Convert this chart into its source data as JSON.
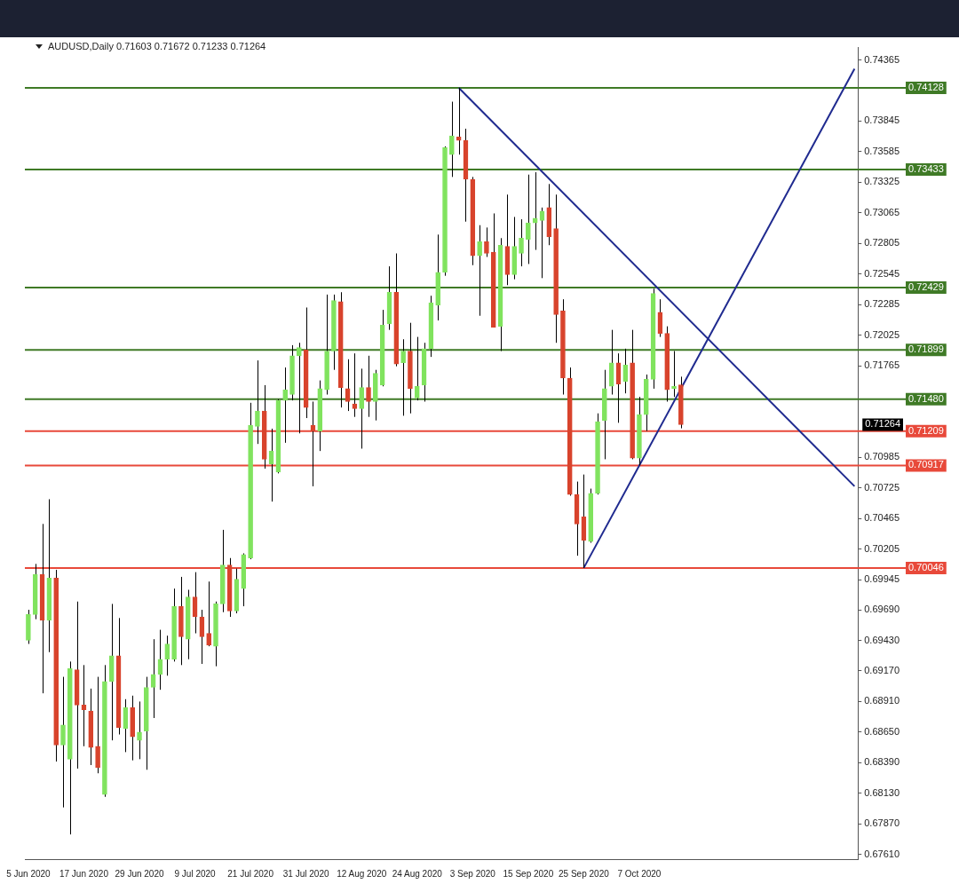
{
  "chart_data": {
    "type": "candlestick",
    "title": "AUDUSD,Daily  0.71603 0.71672 0.71233 0.71264",
    "categories": [
      "5 Jun 2020",
      null,
      null,
      null,
      null,
      null,
      null,
      null,
      "17 Jun 2020",
      null,
      null,
      null,
      null,
      null,
      null,
      null,
      "29 Jun 2020",
      null,
      null,
      null,
      null,
      null,
      null,
      null,
      "9 Jul 2020",
      null,
      null,
      null,
      null,
      null,
      null,
      null,
      "21 Jul 2020",
      null,
      null,
      null,
      null,
      null,
      null,
      null,
      "31 Jul 2020",
      null,
      null,
      null,
      null,
      null,
      null,
      null,
      "12 Aug 2020",
      null,
      null,
      null,
      null,
      null,
      null,
      null,
      "24 Aug 2020",
      null,
      null,
      null,
      null,
      null,
      null,
      null,
      "3 Sep 2020",
      null,
      null,
      null,
      null,
      null,
      null,
      null,
      "15 Sep 2020",
      null,
      null,
      null,
      null,
      null,
      null,
      null,
      "25 Sep 2020",
      null,
      null,
      null,
      null,
      null,
      null,
      null,
      "7 Oct 2020",
      null,
      null,
      null,
      null,
      null,
      null,
      null,
      null,
      null,
      null,
      null,
      null,
      null,
      null,
      null,
      null,
      null,
      null,
      null,
      null,
      null,
      null,
      null,
      null,
      null,
      null,
      null,
      null,
      null,
      null,
      null
    ],
    "series": [
      {
        "type": "candlestick",
        "color": "#000000",
        "ohlc": [
          [
            0.6943,
            0.6969,
            0.694,
            0.6965
          ],
          [
            0.6965,
            0.7008,
            0.6961,
            0.6999
          ],
          [
            0.6999,
            0.7042,
            0.6898,
            0.696
          ],
          [
            0.696,
            0.7063,
            0.6933,
            0.6996
          ],
          [
            0.6996,
            0.7003,
            0.684,
            0.6854
          ],
          [
            0.6854,
            0.6912,
            0.6801,
            0.6871
          ],
          [
            0.6842,
            0.6925,
            0.6778,
            0.6919
          ],
          [
            0.6918,
            0.6976,
            0.6834,
            0.6888
          ],
          [
            0.6888,
            0.6922,
            0.6853,
            0.6884
          ],
          [
            0.6883,
            0.6902,
            0.6837,
            0.6852
          ],
          [
            0.6853,
            0.6912,
            0.683,
            0.6835
          ],
          [
            0.6812,
            0.6922,
            0.681,
            0.6908
          ],
          [
            0.6908,
            0.6974,
            0.6858,
            0.693
          ],
          [
            0.693,
            0.6962,
            0.6863,
            0.6869
          ],
          [
            0.6868,
            0.6893,
            0.6848,
            0.6886
          ],
          [
            0.6886,
            0.6896,
            0.6841,
            0.6861
          ],
          [
            0.6858,
            0.6891,
            0.6842,
            0.6865
          ],
          [
            0.6866,
            0.6912,
            0.6833,
            0.6903
          ],
          [
            0.6903,
            0.6944,
            0.6877,
            0.6914
          ],
          [
            0.6914,
            0.6952,
            0.6901,
            0.6927
          ],
          [
            0.6927,
            0.6947,
            0.6913,
            0.694
          ],
          [
            0.6927,
            0.6987,
            0.6925,
            0.6972
          ],
          [
            0.6972,
            0.6997,
            0.6922,
            0.6946
          ],
          [
            0.6944,
            0.6986,
            0.6927,
            0.698
          ],
          [
            0.698,
            0.7001,
            0.6949,
            0.6963
          ],
          [
            0.6963,
            0.6969,
            0.6923,
            0.6946
          ],
          [
            0.6949,
            0.6993,
            0.6938,
            0.6939
          ],
          [
            0.6938,
            0.6976,
            0.6921,
            0.6974
          ],
          [
            0.6974,
            0.7037,
            0.6967,
            0.7007
          ],
          [
            0.7007,
            0.7013,
            0.6963,
            0.6968
          ],
          [
            0.6968,
            0.7004,
            0.6966,
            0.6995
          ],
          [
            0.6987,
            0.7017,
            0.6972,
            0.7016
          ],
          [
            0.7013,
            0.7145,
            0.7012,
            0.7126
          ],
          [
            0.7125,
            0.7181,
            0.711,
            0.7138
          ],
          [
            0.7138,
            0.716,
            0.7089,
            0.7097
          ],
          [
            0.7093,
            0.7123,
            0.7061,
            0.7104
          ],
          [
            0.7086,
            0.7148,
            0.7085,
            0.7147
          ],
          [
            0.7147,
            0.7175,
            0.7111,
            0.7156
          ],
          [
            0.7152,
            0.7194,
            0.7147,
            0.7185
          ],
          [
            0.7185,
            0.7196,
            0.7119,
            0.7192
          ],
          [
            0.719,
            0.7226,
            0.7132,
            0.7141
          ],
          [
            0.7126,
            0.7146,
            0.7074,
            0.7121
          ],
          [
            0.7121,
            0.7164,
            0.7104,
            0.7157
          ],
          [
            0.7156,
            0.7237,
            0.7152,
            0.7189
          ],
          [
            0.7189,
            0.7237,
            0.7173,
            0.7232
          ],
          [
            0.7231,
            0.7239,
            0.7141,
            0.7158
          ],
          [
            0.7157,
            0.7182,
            0.7138,
            0.7146
          ],
          [
            0.7144,
            0.7187,
            0.7133,
            0.714
          ],
          [
            0.714,
            0.7174,
            0.7106,
            0.7158
          ],
          [
            0.7158,
            0.7185,
            0.7133,
            0.7146
          ],
          [
            0.7146,
            0.7173,
            0.713,
            0.717
          ],
          [
            0.716,
            0.7224,
            0.7159,
            0.7211
          ],
          [
            0.7212,
            0.7261,
            0.7207,
            0.7239
          ],
          [
            0.7239,
            0.7272,
            0.7176,
            0.7178
          ],
          [
            0.7179,
            0.7199,
            0.7134,
            0.7189
          ],
          [
            0.7189,
            0.7213,
            0.7136,
            0.7157
          ],
          [
            0.7149,
            0.7201,
            0.7147,
            0.7159
          ],
          [
            0.716,
            0.7196,
            0.7146,
            0.7191
          ],
          [
            0.7191,
            0.7236,
            0.7184,
            0.723
          ],
          [
            0.7228,
            0.7288,
            0.7215,
            0.7256
          ],
          [
            0.7256,
            0.7363,
            0.7253,
            0.7362
          ],
          [
            0.7356,
            0.7401,
            0.7337,
            0.7372
          ],
          [
            0.7371,
            0.74128,
            0.7356,
            0.7368
          ],
          [
            0.7368,
            0.7378,
            0.7299,
            0.7335
          ],
          [
            0.7335,
            0.7337,
            0.7262,
            0.727
          ],
          [
            0.727,
            0.7296,
            0.7219,
            0.7282
          ],
          [
            0.7282,
            0.7294,
            0.7269,
            0.7272
          ],
          [
            0.7273,
            0.7306,
            0.7209,
            0.7209
          ],
          [
            0.721,
            0.7285,
            0.7189,
            0.7279
          ],
          [
            0.7278,
            0.7322,
            0.7245,
            0.7254
          ],
          [
            0.7254,
            0.7303,
            0.725,
            0.7278
          ],
          [
            0.7272,
            0.7301,
            0.7261,
            0.7285
          ],
          [
            0.7284,
            0.7339,
            0.7263,
            0.7298
          ],
          [
            0.7298,
            0.7341,
            0.7275,
            0.7302
          ],
          [
            0.73,
            0.7311,
            0.7251,
            0.7308
          ],
          [
            0.7311,
            0.7331,
            0.7279,
            0.7286
          ],
          [
            0.7293,
            0.7322,
            0.7196,
            0.722
          ],
          [
            0.7223,
            0.7233,
            0.7152,
            0.7166
          ],
          [
            0.7166,
            0.7175,
            0.7066,
            0.7067
          ],
          [
            0.7067,
            0.7078,
            0.7015,
            0.7042
          ],
          [
            0.7048,
            0.7084,
            0.70046,
            0.7028
          ],
          [
            0.7027,
            0.7072,
            0.7026,
            0.7068
          ],
          [
            0.7068,
            0.7136,
            0.7067,
            0.7129
          ],
          [
            0.713,
            0.7173,
            0.7097,
            0.7157
          ],
          [
            0.7159,
            0.7207,
            0.7152,
            0.7179
          ],
          [
            0.7179,
            0.7187,
            0.7128,
            0.7161
          ],
          [
            0.7163,
            0.7191,
            0.7153,
            0.7177
          ],
          [
            0.7179,
            0.7207,
            0.7097,
            0.7098
          ],
          [
            0.7098,
            0.715,
            0.70917,
            0.7135
          ],
          [
            0.7135,
            0.7169,
            0.7121,
            0.7165
          ],
          [
            0.7165,
            0.7242,
            0.7157,
            0.7238
          ],
          [
            0.7222,
            0.7233,
            0.7201,
            0.7204
          ],
          [
            0.7204,
            0.721,
            0.7146,
            0.7156
          ],
          [
            0.7157,
            0.7189,
            0.715,
            0.7159
          ],
          [
            0.71603,
            0.71672,
            0.71233,
            0.71264
          ],
          null,
          null,
          null,
          null,
          null,
          null,
          null,
          null,
          null,
          null,
          null,
          null,
          null,
          null,
          null,
          null,
          null,
          null,
          null,
          null,
          null,
          null,
          null,
          null,
          null
        ],
        "colors": [
          "#80e35e",
          "#80e35e",
          "#d8432c",
          "#80e35e",
          "#d8432c",
          "#80e35e",
          "#80e35e",
          "#d8432c",
          "#d8432c",
          "#d8432c",
          "#d8432c",
          "#80e35e",
          "#80e35e",
          "#d8432c",
          "#80e35e",
          "#d8432c",
          "#80e35e",
          "#80e35e",
          "#80e35e",
          "#80e35e",
          "#80e35e",
          "#80e35e",
          "#d8432c",
          "#80e35e",
          "#d8432c",
          "#d8432c",
          "#d8432c",
          "#80e35e",
          "#80e35e",
          "#d8432c",
          "#80e35e",
          "#80e35e",
          "#80e35e",
          "#80e35e",
          "#d8432c",
          "#80e35e",
          "#80e35e",
          "#80e35e",
          "#80e35e",
          "#80e35e",
          "#d8432c",
          "#d8432c",
          "#80e35e",
          "#80e35e",
          "#80e35e",
          "#d8432c",
          "#d8432c",
          "#d8432c",
          "#80e35e",
          "#d8432c",
          "#80e35e",
          "#80e35e",
          "#80e35e",
          "#d8432c",
          "#80e35e",
          "#d8432c",
          "#80e35e",
          "#80e35e",
          "#80e35e",
          "#80e35e",
          "#80e35e",
          "#80e35e",
          "#d8432c",
          "#d8432c",
          "#d8432c",
          "#80e35e",
          "#d8432c",
          "#d8432c",
          "#80e35e",
          "#d8432c",
          "#80e35e",
          "#80e35e",
          "#80e35e",
          "#80e35e",
          "#80e35e",
          "#d8432c",
          "#d8432c",
          "#d8432c",
          "#d8432c",
          "#d8432c",
          "#d8432c",
          "#80e35e",
          "#80e35e",
          "#80e35e",
          "#80e35e",
          "#d8432c",
          "#80e35e",
          "#d8432c",
          "#80e35e",
          "#80e35e",
          "#80e35e",
          "#d8432c",
          "#d8432c",
          "#80e35e",
          "#d8432c",
          null,
          null,
          null,
          null,
          null,
          null,
          null,
          null,
          null,
          null,
          null,
          null,
          null,
          null,
          null,
          null,
          null,
          null,
          null,
          null,
          null,
          null,
          null,
          null,
          null
        ]
      },
      {
        "type": "line",
        "color": "#1f2a8f",
        "values": [
          null,
          null,
          null,
          null,
          null,
          null,
          null,
          null,
          null,
          null,
          null,
          null,
          null,
          null,
          null,
          null,
          null,
          null,
          null,
          null,
          null,
          null,
          null,
          null,
          null,
          null,
          null,
          null,
          null,
          null,
          null,
          null,
          null,
          null,
          null,
          null,
          null,
          null,
          null,
          null,
          null,
          null,
          null,
          null,
          null,
          null,
          null,
          null,
          null,
          null,
          null,
          null,
          null,
          null,
          null,
          null,
          null,
          null,
          null,
          null,
          null,
          null,
          0.74128,
          null,
          null,
          null,
          null,
          null,
          null,
          null,
          null,
          null,
          null,
          null,
          null,
          null,
          null,
          null,
          null,
          null,
          null,
          null,
          null,
          null,
          null,
          null,
          null,
          null,
          null,
          null,
          null,
          null,
          null,
          null,
          null,
          null,
          null,
          null,
          null,
          null,
          null,
          null,
          null,
          null,
          null,
          null,
          null,
          null,
          null,
          null,
          null,
          null,
          null,
          null,
          null,
          null,
          null,
          null,
          null,
          0.7074
        ]
      },
      {
        "type": "line",
        "color": "#1f2a8f",
        "values": [
          null,
          null,
          null,
          null,
          null,
          null,
          null,
          null,
          null,
          null,
          null,
          null,
          null,
          null,
          null,
          null,
          null,
          null,
          null,
          null,
          null,
          null,
          null,
          null,
          null,
          null,
          null,
          null,
          null,
          null,
          null,
          null,
          null,
          null,
          null,
          null,
          null,
          null,
          null,
          null,
          null,
          null,
          null,
          null,
          null,
          null,
          null,
          null,
          null,
          null,
          null,
          null,
          null,
          null,
          null,
          null,
          null,
          null,
          null,
          null,
          null,
          null,
          null,
          null,
          null,
          null,
          null,
          null,
          null,
          null,
          null,
          null,
          null,
          null,
          null,
          null,
          null,
          null,
          null,
          null,
          0.70046,
          null,
          null,
          null,
          null,
          null,
          null,
          null,
          null,
          null,
          null,
          null,
          null,
          null,
          null,
          null,
          null,
          null,
          null,
          null,
          null,
          null,
          null,
          null,
          null,
          null,
          null,
          null,
          null,
          null,
          null,
          null,
          null,
          null,
          null,
          null,
          null,
          null,
          null,
          0.7429
        ]
      }
    ],
    "ylim": [
      0.6757,
      0.7447
    ],
    "yticks": [
      {
        "value": 0.6761,
        "label": "0.67610"
      },
      {
        "value": 0.6787,
        "label": "0.67870"
      },
      {
        "value": 0.6813,
        "label": "0.68130"
      },
      {
        "value": 0.6839,
        "label": "0.68390"
      },
      {
        "value": 0.6865,
        "label": "0.68650"
      },
      {
        "value": 0.6891,
        "label": "0.68910"
      },
      {
        "value": 0.6917,
        "label": "0.69170"
      },
      {
        "value": 0.6943,
        "label": "0.69430"
      },
      {
        "value": 0.6969,
        "label": "0.69690"
      },
      0.69945,
      0.70205,
      0.70465,
      0.70725,
      0.70985,
      0.71765,
      0.72025,
      0.72285,
      0.72545,
      0.72805,
      0.73065,
      0.73325,
      0.73585,
      0.73845,
      0.74365
    ],
    "ref_lines": [
      {
        "axis": "y",
        "value": 0.74128,
        "label": "0.74128",
        "color": "#3f7a26"
      },
      {
        "axis": "y",
        "value": 0.73433,
        "label": "0.73433",
        "color": "#3f7a26"
      },
      {
        "axis": "y",
        "value": 0.72429,
        "label": "0.72429",
        "color": "#3f7a26"
      },
      {
        "axis": "y",
        "value": 0.71899,
        "label": "0.71899",
        "color": "#3f7a26"
      },
      {
        "axis": "y",
        "value": 0.7148,
        "label": "0.71480",
        "color": "#3f7a26"
      },
      {
        "axis": "y",
        "value": 0.71209,
        "label": "0.71209",
        "color": "#e8493a"
      },
      {
        "axis": "y",
        "value": 0.70917,
        "label": "0.70917",
        "color": "#e8493a"
      },
      {
        "axis": "y",
        "value": 0.70046,
        "label": "0.70046",
        "color": "#e8493a"
      }
    ],
    "annotations": [
      "0.71264"
    ],
    "legend": false
  }
}
